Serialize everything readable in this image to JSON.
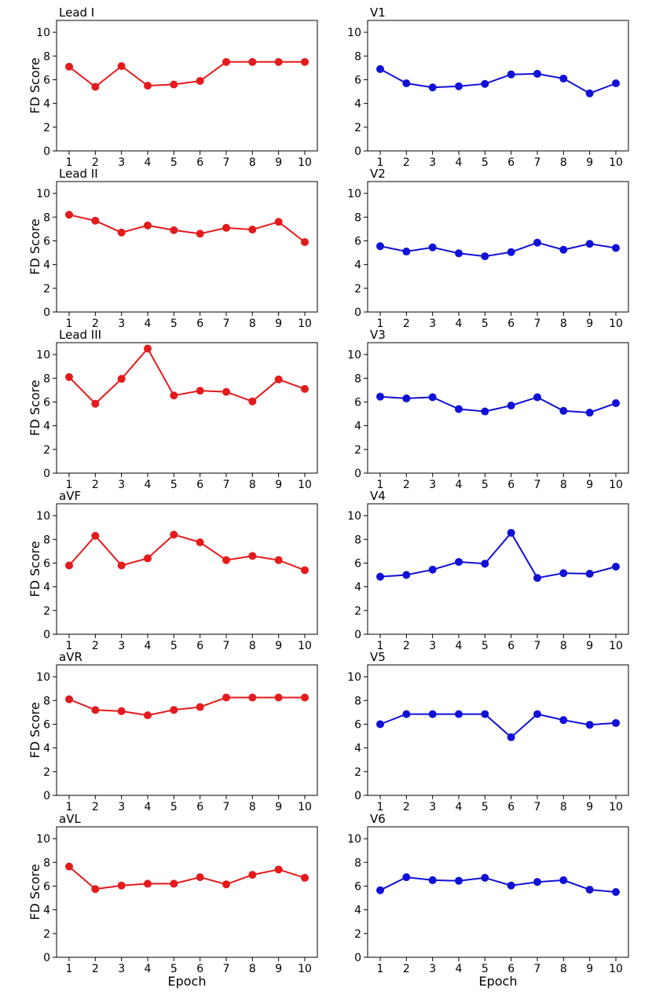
{
  "figure": {
    "ylabel": "FD Score",
    "xlabel": "Epoch",
    "series_colors": {
      "left": "#e41a1c",
      "right": "#1010d6"
    }
  },
  "chart_data": [
    {
      "type": "line",
      "title": "Lead I",
      "x": [
        1,
        2,
        3,
        4,
        5,
        6,
        7,
        8,
        9,
        10
      ],
      "values": [
        7.1,
        5.4,
        7.15,
        5.5,
        5.6,
        5.9,
        7.5,
        7.5,
        7.5,
        7.5
      ],
      "ylim": [
        0,
        11
      ],
      "yticks": [
        0,
        2,
        4,
        6,
        8,
        10
      ],
      "ylabel": "FD Score",
      "xlabel": ""
    },
    {
      "type": "line",
      "title": "V1",
      "x": [
        1,
        2,
        3,
        4,
        5,
        6,
        7,
        8,
        9,
        10
      ],
      "values": [
        6.9,
        5.7,
        5.35,
        5.45,
        5.65,
        6.45,
        6.5,
        6.1,
        4.85,
        5.7
      ],
      "ylim": [
        0,
        11
      ],
      "yticks": [
        0,
        2,
        4,
        6,
        8,
        10
      ],
      "ylabel": "",
      "xlabel": ""
    },
    {
      "type": "line",
      "title": "Lead II",
      "x": [
        1,
        2,
        3,
        4,
        5,
        6,
        7,
        8,
        9,
        10
      ],
      "values": [
        8.2,
        7.7,
        6.7,
        7.3,
        6.9,
        6.6,
        7.1,
        6.95,
        7.6,
        5.9
      ],
      "ylim": [
        0,
        11
      ],
      "yticks": [
        0,
        2,
        4,
        6,
        8,
        10
      ],
      "ylabel": "FD Score",
      "xlabel": ""
    },
    {
      "type": "line",
      "title": "V2",
      "x": [
        1,
        2,
        3,
        4,
        5,
        6,
        7,
        8,
        9,
        10
      ],
      "values": [
        5.55,
        5.1,
        5.45,
        4.95,
        4.7,
        5.05,
        5.85,
        5.25,
        5.75,
        5.4
      ],
      "ylim": [
        0,
        11
      ],
      "yticks": [
        0,
        2,
        4,
        6,
        8,
        10
      ],
      "ylabel": "",
      "xlabel": ""
    },
    {
      "type": "line",
      "title": "Lead III",
      "x": [
        1,
        2,
        3,
        4,
        5,
        6,
        7,
        8,
        9,
        10
      ],
      "values": [
        8.1,
        5.85,
        7.95,
        10.5,
        6.55,
        6.95,
        6.85,
        6.05,
        7.9,
        7.1
      ],
      "ylim": [
        0,
        11
      ],
      "yticks": [
        0,
        2,
        4,
        6,
        8,
        10
      ],
      "ylabel": "FD Score",
      "xlabel": ""
    },
    {
      "type": "line",
      "title": "V3",
      "x": [
        1,
        2,
        3,
        4,
        5,
        6,
        7,
        8,
        9,
        10
      ],
      "values": [
        6.45,
        6.3,
        6.4,
        5.4,
        5.2,
        5.7,
        6.4,
        5.25,
        5.1,
        5.9
      ],
      "ylim": [
        0,
        11
      ],
      "yticks": [
        0,
        2,
        4,
        6,
        8,
        10
      ],
      "ylabel": "",
      "xlabel": ""
    },
    {
      "type": "line",
      "title": "aVF",
      "x": [
        1,
        2,
        3,
        4,
        5,
        6,
        7,
        8,
        9,
        10
      ],
      "values": [
        5.8,
        8.3,
        5.8,
        6.4,
        8.4,
        7.75,
        6.25,
        6.6,
        6.25,
        5.4
      ],
      "ylim": [
        0,
        11
      ],
      "yticks": [
        0,
        2,
        4,
        6,
        8,
        10
      ],
      "ylabel": "FD Score",
      "xlabel": ""
    },
    {
      "type": "line",
      "title": "V4",
      "x": [
        1,
        2,
        3,
        4,
        5,
        6,
        7,
        8,
        9,
        10
      ],
      "values": [
        4.85,
        5.0,
        5.45,
        6.1,
        5.95,
        8.55,
        4.75,
        5.15,
        5.1,
        5.7
      ],
      "ylim": [
        0,
        11
      ],
      "yticks": [
        0,
        2,
        4,
        6,
        8,
        10
      ],
      "ylabel": "",
      "xlabel": ""
    },
    {
      "type": "line",
      "title": "aVR",
      "x": [
        1,
        2,
        3,
        4,
        5,
        6,
        7,
        8,
        9,
        10
      ],
      "values": [
        8.1,
        7.2,
        7.1,
        6.75,
        7.2,
        7.45,
        8.25,
        8.25,
        8.25,
        8.25
      ],
      "ylim": [
        0,
        11
      ],
      "yticks": [
        0,
        2,
        4,
        6,
        8,
        10
      ],
      "ylabel": "FD Score",
      "xlabel": ""
    },
    {
      "type": "line",
      "title": "V5",
      "x": [
        1,
        2,
        3,
        4,
        5,
        6,
        7,
        8,
        9,
        10
      ],
      "values": [
        6.0,
        6.85,
        6.85,
        6.85,
        6.85,
        4.9,
        6.85,
        6.35,
        5.95,
        6.1
      ],
      "ylim": [
        0,
        11
      ],
      "yticks": [
        0,
        2,
        4,
        6,
        8,
        10
      ],
      "ylabel": "",
      "xlabel": ""
    },
    {
      "type": "line",
      "title": "aVL",
      "x": [
        1,
        2,
        3,
        4,
        5,
        6,
        7,
        8,
        9,
        10
      ],
      "values": [
        7.65,
        5.75,
        6.05,
        6.2,
        6.2,
        6.75,
        6.15,
        6.95,
        7.4,
        6.7
      ],
      "ylim": [
        0,
        11
      ],
      "yticks": [
        0,
        2,
        4,
        6,
        8,
        10
      ],
      "ylabel": "FD Score",
      "xlabel": "Epoch"
    },
    {
      "type": "line",
      "title": "V6",
      "x": [
        1,
        2,
        3,
        4,
        5,
        6,
        7,
        8,
        9,
        10
      ],
      "values": [
        5.65,
        6.75,
        6.5,
        6.45,
        6.7,
        6.05,
        6.35,
        6.5,
        5.7,
        5.5
      ],
      "ylim": [
        0,
        11
      ],
      "yticks": [
        0,
        2,
        4,
        6,
        8,
        10
      ],
      "ylabel": "",
      "xlabel": "Epoch"
    }
  ]
}
